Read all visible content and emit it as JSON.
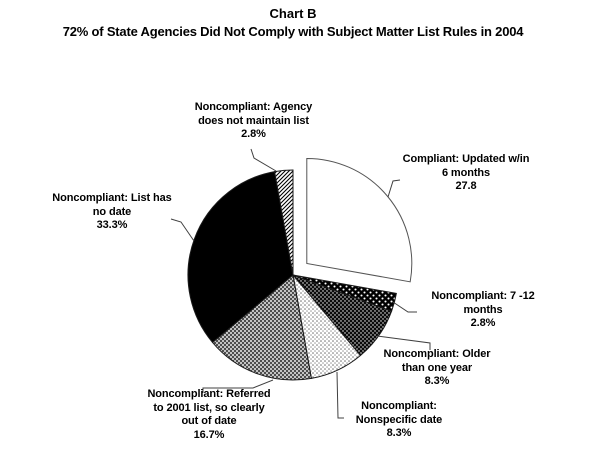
{
  "header": {
    "title": "Chart B",
    "subtitle": "72% of State Agencies Did Not Comply with Subject Matter List Rules in 2004"
  },
  "chart_data": {
    "type": "pie",
    "title": "Chart B",
    "subtitle": "72% of State Agencies Did Not Comply with Subject Matter List Rules in 2004",
    "unit": "percent of state agencies",
    "total": 100,
    "start_angle_deg": 0,
    "direction": "clockwise",
    "legend": "none (labels with leader lines around pie)",
    "slices": [
      {
        "id": "compliant-updated",
        "label_lines": [
          "Compliant: Updated w/in",
          "6 months"
        ],
        "value": 27.8,
        "value_label": "27.8",
        "exploded": true,
        "pattern": "solid-white"
      },
      {
        "id": "noncompliant-7-12-months",
        "label_lines": [
          "Noncompliant: 7 -12",
          "months"
        ],
        "value": 2.8,
        "value_label": "2.8%",
        "exploded": false,
        "pattern": "white-dots-on-black"
      },
      {
        "id": "noncompliant-older-than-one-year",
        "label_lines": [
          "Noncompliant: Older",
          "than one year"
        ],
        "value": 8.3,
        "value_label": "8.3%",
        "exploded": false,
        "pattern": "fine-white-dots-on-black"
      },
      {
        "id": "noncompliant-nonspecific-date",
        "label_lines": [
          "Noncompliant:",
          "Nonspecific date"
        ],
        "value": 8.3,
        "value_label": "8.3%",
        "exploded": false,
        "pattern": "gray-dots-on-white"
      },
      {
        "id": "noncompliant-referred-2001-list",
        "label_lines": [
          "Noncompliant: Referred",
          "to 2001 list, so clearly",
          "out of date"
        ],
        "value": 16.7,
        "value_label": "16.7%",
        "exploded": false,
        "pattern": "gray-checkerboard"
      },
      {
        "id": "noncompliant-list-no-date",
        "label_lines": [
          "Noncompliant: List has",
          "no date"
        ],
        "value": 33.3,
        "value_label": "33.3%",
        "exploded": false,
        "pattern": "solid-black"
      },
      {
        "id": "noncompliant-no-list",
        "label_lines": [
          "Noncompliant: Agency",
          "does not maintain list"
        ],
        "value": 2.8,
        "value_label": "2.8%",
        "exploded": false,
        "pattern": "diagonal-hatch"
      }
    ]
  },
  "colors": {
    "background": "#ffffff",
    "text": "#000000",
    "leader_line": "#404040",
    "slice_black": "#000000",
    "slice_white": "#ffffff",
    "checker_dark": "#4d4d4d",
    "checker_light": "#c3c3c3"
  }
}
